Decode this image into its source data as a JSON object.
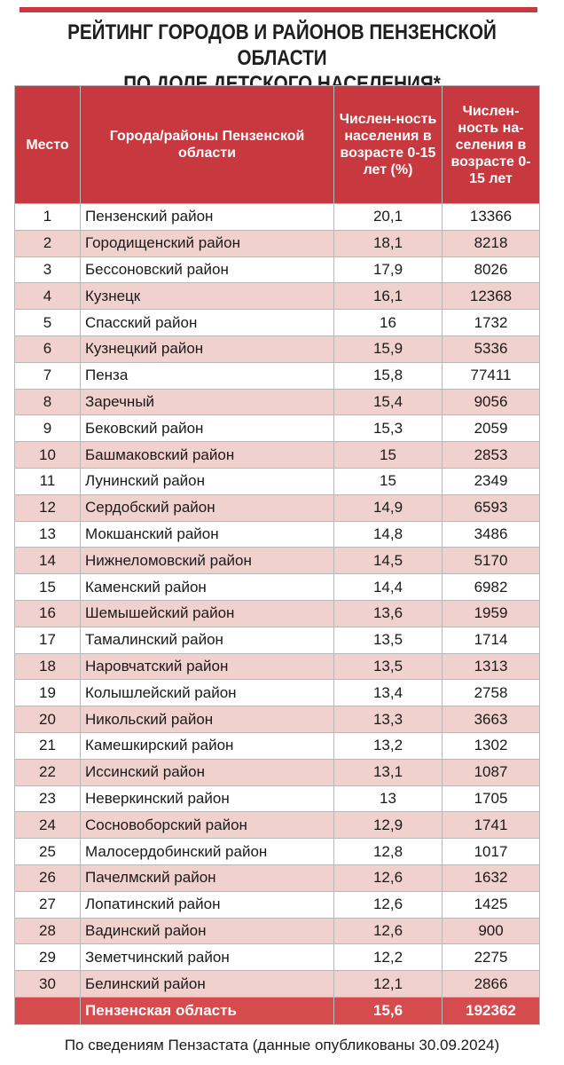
{
  "title": {
    "line1": "РЕЙТИНГ ГОРОДОВ И РАЙОНОВ ПЕНЗЕНСКОЙ ОБЛАСТИ",
    "line2": "ПО ДОЛЕ ДЕТСКОГО НАСЕЛЕНИЯ*"
  },
  "colors": {
    "header_red": "#c8383f",
    "row_pink": "#f1d1cd",
    "total_red": "#d64b4d"
  },
  "headers": {
    "place": "Место",
    "name": "Города/районы Пензенской области",
    "pct": "Числен-ность населения в возрасте 0-15 лет (%)",
    "count": "Числен-ность на-селения в возрасте 0-15 лет"
  },
  "rows": [
    {
      "place": "1",
      "name": "Пензенский район",
      "pct": "20,1",
      "count": "13366"
    },
    {
      "place": "2",
      "name": "Городищенский район",
      "pct": "18,1",
      "count": "8218"
    },
    {
      "place": "3",
      "name": "Бессоновский район",
      "pct": "17,9",
      "count": "8026"
    },
    {
      "place": "4",
      "name": "Кузнецк",
      "pct": "16,1",
      "count": "12368"
    },
    {
      "place": "5",
      "name": "Спасский район",
      "pct": "16",
      "count": "1732"
    },
    {
      "place": "6",
      "name": "Кузнецкий район",
      "pct": "15,9",
      "count": "5336"
    },
    {
      "place": "7",
      "name": "Пенза",
      "pct": "15,8",
      "count": "77411"
    },
    {
      "place": "8",
      "name": "Заречный",
      "pct": "15,4",
      "count": "9056"
    },
    {
      "place": "9",
      "name": "Бековский район",
      "pct": "15,3",
      "count": "2059"
    },
    {
      "place": "10",
      "name": "Башмаковский район",
      "pct": "15",
      "count": "2853"
    },
    {
      "place": "11",
      "name": "Лунинский район",
      "pct": "15",
      "count": "2349"
    },
    {
      "place": "12",
      "name": "Сердобский район",
      "pct": "14,9",
      "count": "6593"
    },
    {
      "place": "13",
      "name": "Мокшанский район",
      "pct": "14,8",
      "count": "3486"
    },
    {
      "place": "14",
      "name": "Нижнеломовский район",
      "pct": "14,5",
      "count": "5170"
    },
    {
      "place": "15",
      "name": "Каменский район",
      "pct": "14,4",
      "count": "6982"
    },
    {
      "place": "16",
      "name": " Шемышейский район",
      "pct": "13,6",
      "count": "1959"
    },
    {
      "place": "17",
      "name": "Тамалинский район",
      "pct": "13,5",
      "count": "1714"
    },
    {
      "place": "18",
      "name": "Наровчатский район",
      "pct": "13,5",
      "count": "1313"
    },
    {
      "place": "19",
      "name": "Колышлейский район",
      "pct": "13,4",
      "count": "2758"
    },
    {
      "place": "20",
      "name": "Никольский район",
      "pct": "13,3",
      "count": "3663"
    },
    {
      "place": "21",
      "name": "Камешкирский район",
      "pct": "13,2",
      "count": "1302"
    },
    {
      "place": "22",
      "name": "Иссинский район",
      "pct": "13,1",
      "count": "1087"
    },
    {
      "place": "23",
      "name": "Неверкинский район",
      "pct": "13",
      "count": "1705"
    },
    {
      "place": "24",
      "name": "Сосновоборский район",
      "pct": "12,9",
      "count": "1741"
    },
    {
      "place": "25",
      "name": "Малосердобинский район",
      "pct": "12,8",
      "count": "1017"
    },
    {
      "place": "26",
      "name": "Пачелмский район",
      "pct": "12,6",
      "count": "1632"
    },
    {
      "place": "27",
      "name": "Лопатинский район",
      "pct": "12,6",
      "count": "1425"
    },
    {
      "place": "28",
      "name": "Вадинский район",
      "pct": "12,6",
      "count": "900"
    },
    {
      "place": "29",
      "name": "Земетчинский район",
      "pct": "12,2",
      "count": "2275"
    },
    {
      "place": "30",
      "name": "Белинский район",
      "pct": "12,1",
      "count": "2866"
    }
  ],
  "total": {
    "name": "Пензенская область",
    "pct": "15,6",
    "count": "192362"
  },
  "source": "По сведениям Пензастата (данные опубликованы 30.09.2024)"
}
